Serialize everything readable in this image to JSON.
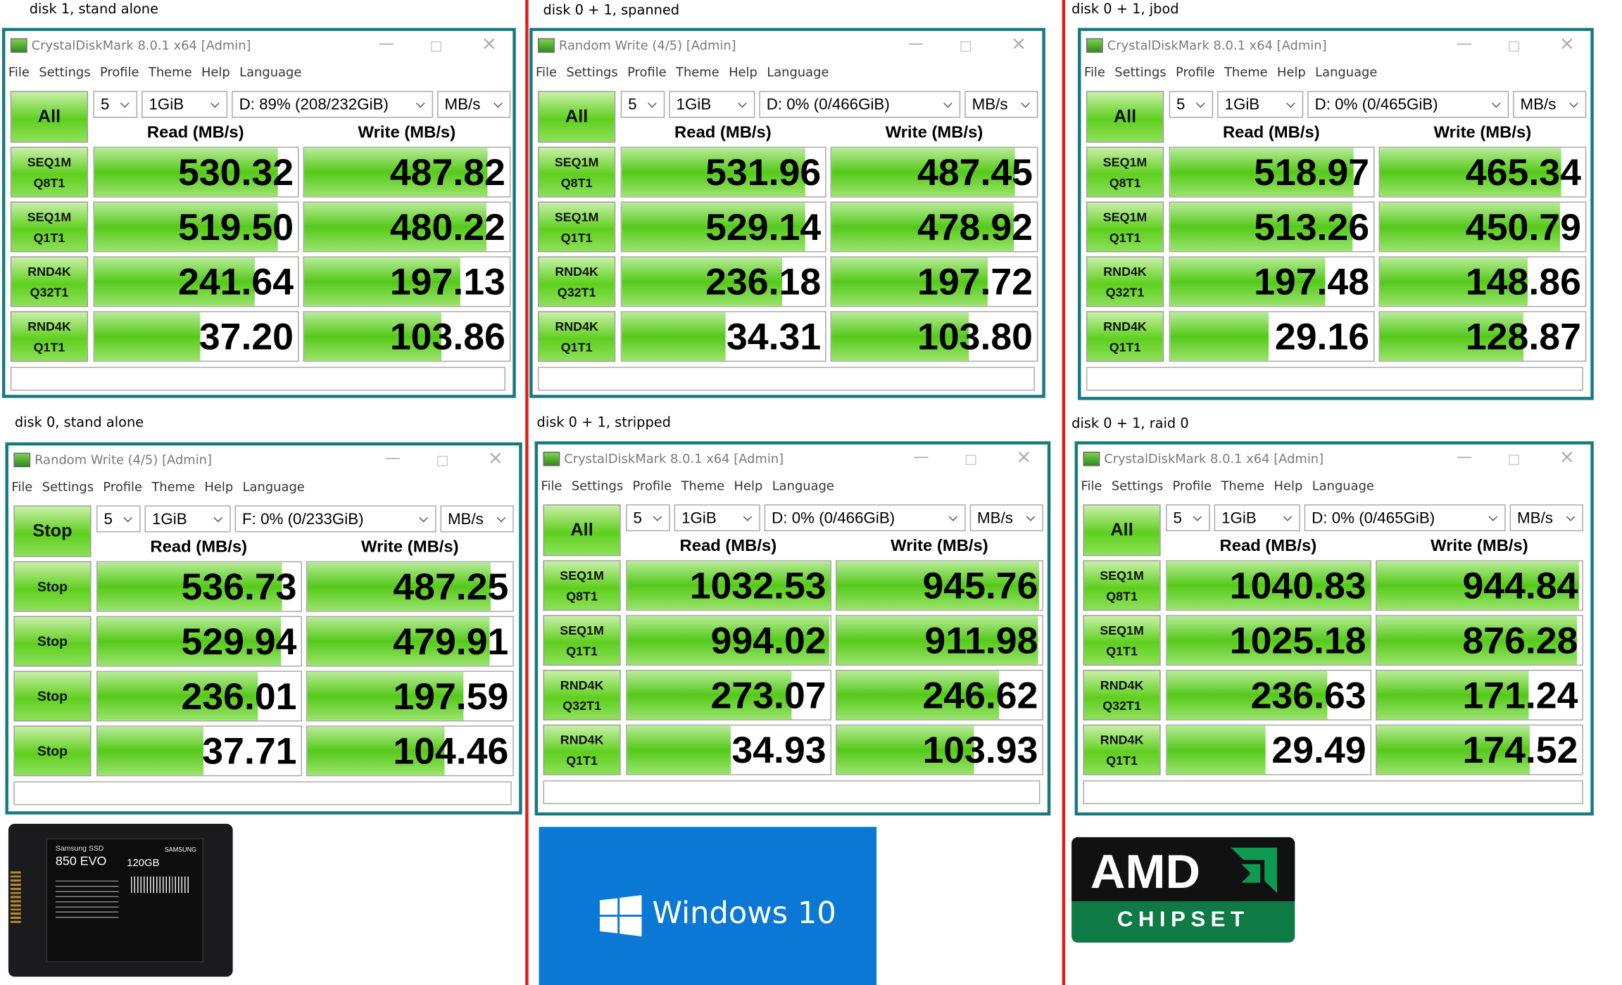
{
  "menu": [
    "File",
    "Settings",
    "Profile",
    "Theme",
    "Help",
    "Language"
  ],
  "headers": {
    "read": "Read (MB/s)",
    "write": "Write (MB/s)"
  },
  "settings": {
    "count": "5",
    "size": "1GiB",
    "unit": "MB/s"
  },
  "panels": [
    {
      "caption": "disk 1, stand alone",
      "title": "CrystalDiskMark 8.0.1 x64 [Admin]",
      "button": "All",
      "drive": "D: 89% (208/232GiB)",
      "rows": [
        {
          "label": [
            "SEQ1M",
            "Q8T1"
          ],
          "read": 530.32,
          "read_label": "530.32",
          "write": 487.82,
          "write_label": "487.82"
        },
        {
          "label": [
            "SEQ1M",
            "Q1T1"
          ],
          "read": 519.5,
          "read_label": "519.50",
          "write": 480.22,
          "write_label": "480.22"
        },
        {
          "label": [
            "RND4K",
            "Q32T1"
          ],
          "read": 241.64,
          "read_label": "241.64",
          "write": 197.13,
          "write_label": "197.13"
        },
        {
          "label": [
            "RND4K",
            "Q1T1"
          ],
          "read": 37.2,
          "read_label": "37.20",
          "write": 103.86,
          "write_label": "103.86"
        }
      ]
    },
    {
      "caption": "disk 0 + 1, spanned",
      "title": "Random Write (4/5) [Admin]",
      "button": "All",
      "drive": "D: 0% (0/466GiB)",
      "rows": [
        {
          "label": [
            "SEQ1M",
            "Q8T1"
          ],
          "read": 531.96,
          "read_label": "531.96",
          "write": 487.45,
          "write_label": "487.45"
        },
        {
          "label": [
            "SEQ1M",
            "Q1T1"
          ],
          "read": 529.14,
          "read_label": "529.14",
          "write": 478.92,
          "write_label": "478.92"
        },
        {
          "label": [
            "RND4K",
            "Q32T1"
          ],
          "read": 236.18,
          "read_label": "236.18",
          "write": 197.72,
          "write_label": "197.72"
        },
        {
          "label": [
            "RND4K",
            "Q1T1"
          ],
          "read": 34.31,
          "read_label": "34.31",
          "write": 103.8,
          "write_label": "103.80"
        }
      ]
    },
    {
      "caption": "disk 0 + 1, jbod",
      "title": "CrystalDiskMark 8.0.1 x64 [Admin]",
      "button": "All",
      "drive": "D: 0% (0/465GiB)",
      "rows": [
        {
          "label": [
            "SEQ1M",
            "Q8T1"
          ],
          "read": 518.97,
          "read_label": "518.97",
          "write": 465.34,
          "write_label": "465.34"
        },
        {
          "label": [
            "SEQ1M",
            "Q1T1"
          ],
          "read": 513.26,
          "read_label": "513.26",
          "write": 450.79,
          "write_label": "450.79"
        },
        {
          "label": [
            "RND4K",
            "Q32T1"
          ],
          "read": 197.48,
          "read_label": "197.48",
          "write": 148.86,
          "write_label": "148.86"
        },
        {
          "label": [
            "RND4K",
            "Q1T1"
          ],
          "read": 29.16,
          "read_label": "29.16",
          "write": 128.87,
          "write_label": "128.87"
        }
      ]
    },
    {
      "caption": "disk 0, stand alone",
      "title": "Random Write (4/5) [Admin]",
      "button": "Stop",
      "drive": "F: 0% (0/233GiB)",
      "rows": [
        {
          "label": [
            "Stop"
          ],
          "read": 536.73,
          "read_label": "536.73",
          "write": 487.25,
          "write_label": "487.25"
        },
        {
          "label": [
            "Stop"
          ],
          "read": 529.94,
          "read_label": "529.94",
          "write": 479.91,
          "write_label": "479.91"
        },
        {
          "label": [
            "Stop"
          ],
          "read": 236.01,
          "read_label": "236.01",
          "write": 197.59,
          "write_label": "197.59"
        },
        {
          "label": [
            "Stop"
          ],
          "read": 37.71,
          "read_label": "37.71",
          "write": 104.46,
          "write_label": "104.46"
        }
      ]
    },
    {
      "caption": "disk 0 + 1, stripped",
      "title": "CrystalDiskMark 8.0.1 x64 [Admin]",
      "button": "All",
      "drive": "D: 0% (0/466GiB)",
      "rows": [
        {
          "label": [
            "SEQ1M",
            "Q8T1"
          ],
          "read": 1032.53,
          "read_label": "1032.53",
          "write": 945.76,
          "write_label": "945.76"
        },
        {
          "label": [
            "SEQ1M",
            "Q1T1"
          ],
          "read": 994.02,
          "read_label": "994.02",
          "write": 911.98,
          "write_label": "911.98"
        },
        {
          "label": [
            "RND4K",
            "Q32T1"
          ],
          "read": 273.07,
          "read_label": "273.07",
          "write": 246.62,
          "write_label": "246.62"
        },
        {
          "label": [
            "RND4K",
            "Q1T1"
          ],
          "read": 34.93,
          "read_label": "34.93",
          "write": 103.93,
          "write_label": "103.93"
        }
      ]
    },
    {
      "caption": "disk 0 + 1, raid 0",
      "title": "CrystalDiskMark 8.0.1 x64 [Admin]",
      "button": "All",
      "drive": "D: 0% (0/465GiB)",
      "rows": [
        {
          "label": [
            "SEQ1M",
            "Q8T1"
          ],
          "read": 1040.83,
          "read_label": "1040.83",
          "write": 944.84,
          "write_label": "944.84"
        },
        {
          "label": [
            "SEQ1M",
            "Q1T1"
          ],
          "read": 1025.18,
          "read_label": "1025.18",
          "write": 876.28,
          "write_label": "876.28"
        },
        {
          "label": [
            "RND4K",
            "Q32T1"
          ],
          "read": 236.63,
          "read_label": "236.63",
          "write": 171.24,
          "write_label": "171.24"
        },
        {
          "label": [
            "RND4K",
            "Q1T1"
          ],
          "read": 29.49,
          "read_label": "29.49",
          "write": 174.52,
          "write_label": "174.52"
        }
      ]
    }
  ],
  "ssd": {
    "brand": "Samsung SSD",
    "model": "850 EVO",
    "capacity": "120GB",
    "maker": "SAMSUNG"
  },
  "windows": {
    "text": "Windows 10"
  },
  "amd": {
    "brand": "AMD",
    "subtitle": "CHIPSET"
  }
}
